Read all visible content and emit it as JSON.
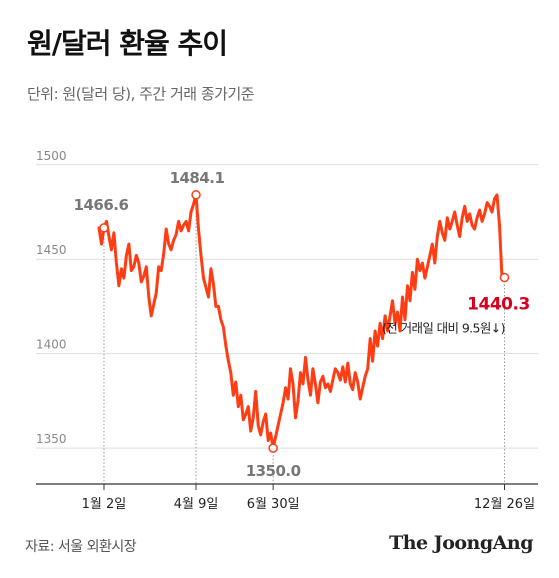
{
  "title": "원/달러 환율 추이",
  "subtitle": "단위: 원(달러 당), 주간 거래 종가기준",
  "source": "자료: 서울 외환시장",
  "brand": "The JoongAng",
  "colors": {
    "line": "#ff3d14",
    "highlight": "#d6001c",
    "grid": "#dddddd",
    "label": "#888888"
  },
  "chart_data": {
    "type": "line",
    "title": "원/달러 환율 추이",
    "xlabel": "",
    "ylabel": "",
    "ylim": [
      1331,
      1520
    ],
    "yticks": [
      1350,
      1400,
      1450,
      1500
    ],
    "grid": true,
    "x_ticks": [
      "1월 2일",
      "4월 9일",
      "6월 30일",
      "12월 26일"
    ],
    "x_tick_index": [
      2,
      39,
      70,
      163
    ],
    "series": [
      {
        "name": "",
        "values": [
          1466.6,
          1458,
          1466.6,
          1470,
          1462,
          1455,
          1464,
          1448,
          1436,
          1445,
          1440,
          1452,
          1458,
          1444,
          1446,
          1452,
          1448,
          1438,
          1441,
          1446,
          1430,
          1420,
          1426,
          1432,
          1446,
          1444,
          1453,
          1466,
          1458,
          1455,
          1460,
          1463,
          1470,
          1465,
          1468,
          1470,
          1465,
          1475,
          1479,
          1484.1,
          1466,
          1452,
          1440,
          1435,
          1430,
          1445,
          1437,
          1425,
          1425,
          1418,
          1414,
          1404,
          1396,
          1390,
          1378,
          1385,
          1372,
          1378,
          1365,
          1368,
          1372,
          1359,
          1366,
          1380,
          1362,
          1357,
          1364,
          1368,
          1354,
          1358,
          1350.0,
          1356,
          1362,
          1368,
          1374,
          1382,
          1376,
          1392,
          1384,
          1366,
          1375,
          1390,
          1384,
          1398,
          1386,
          1378,
          1392,
          1384,
          1374,
          1385,
          1388,
          1382,
          1384,
          1380,
          1386,
          1392,
          1390,
          1386,
          1393,
          1385,
          1395,
          1384,
          1381,
          1390,
          1385,
          1376,
          1382,
          1388,
          1392,
          1408,
          1396,
          1412,
          1404,
          1416,
          1408,
          1420,
          1412,
          1420,
          1428,
          1416,
          1422,
          1412,
          1430,
          1418,
          1436,
          1428,
          1443,
          1434,
          1450,
          1444,
          1448,
          1440,
          1446,
          1452,
          1458,
          1448,
          1462,
          1470,
          1464,
          1460,
          1472,
          1466,
          1470,
          1475,
          1468,
          1462,
          1472,
          1478,
          1470,
          1474,
          1468,
          1466,
          1472,
          1476,
          1470,
          1474,
          1480,
          1478,
          1475,
          1482,
          1484,
          1468,
          1440.3
        ]
      }
    ],
    "annotations": [
      {
        "index": 2,
        "value": 1466.6,
        "label": "1466.6"
      },
      {
        "index": 39,
        "value": 1484.1,
        "label": "1484.1"
      },
      {
        "index": 70,
        "value": 1350.0,
        "label": "1350.0"
      },
      {
        "index": 163,
        "value": 1440.3,
        "label": "1440.3",
        "note": "(전 거래일 대비 9.5원↓)"
      }
    ]
  }
}
